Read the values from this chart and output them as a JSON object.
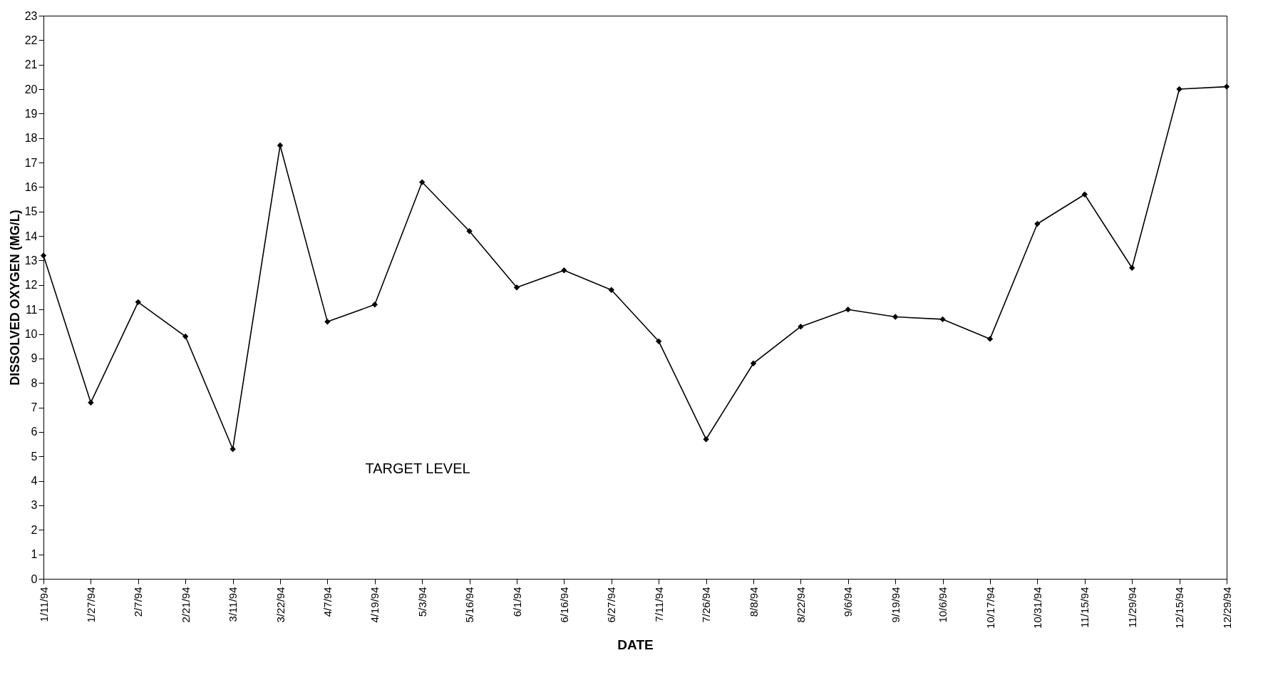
{
  "chart_data": {
    "type": "line",
    "xlabel": "DATE",
    "ylabel": "DISSOLVED OXYGEN (MG/L)",
    "categories": [
      "1/11/94",
      "1/27/94",
      "2/7/94",
      "2/21/94",
      "3/11/94",
      "3/22/94",
      "4/7/94",
      "4/19/94",
      "5/3/94",
      "5/16/94",
      "6/1/94",
      "6/16/94",
      "6/27/94",
      "7/11/94",
      "7/26/94",
      "8/8/94",
      "8/22/94",
      "9/6/94",
      "9/19/94",
      "10/6/94",
      "10/17/94",
      "10/31/94",
      "11/15/94",
      "11/29/94",
      "12/15/94",
      "12/29/94"
    ],
    "series": [
      {
        "color": "#000000",
        "values": [
          13.2,
          7.2,
          11.3,
          9.9,
          5.3,
          17.7,
          10.5,
          11.2,
          16.2,
          14.2,
          11.9,
          12.6,
          11.8,
          9.7,
          5.7,
          8.8,
          10.3,
          11.0,
          10.7,
          10.6,
          9.8,
          14.5,
          15.7,
          12.7,
          20.0,
          20.1
        ]
      }
    ],
    "ylim": [
      0,
      23
    ],
    "yticks": [
      0,
      1,
      2,
      3,
      4,
      5,
      6,
      7,
      8,
      9,
      10,
      11,
      12,
      13,
      14,
      15,
      16,
      17,
      18,
      19,
      20,
      21,
      22,
      23
    ],
    "grid": false,
    "marker": "diamond",
    "line_style": "solid",
    "annotations": [
      "TARGET LEVEL"
    ]
  }
}
